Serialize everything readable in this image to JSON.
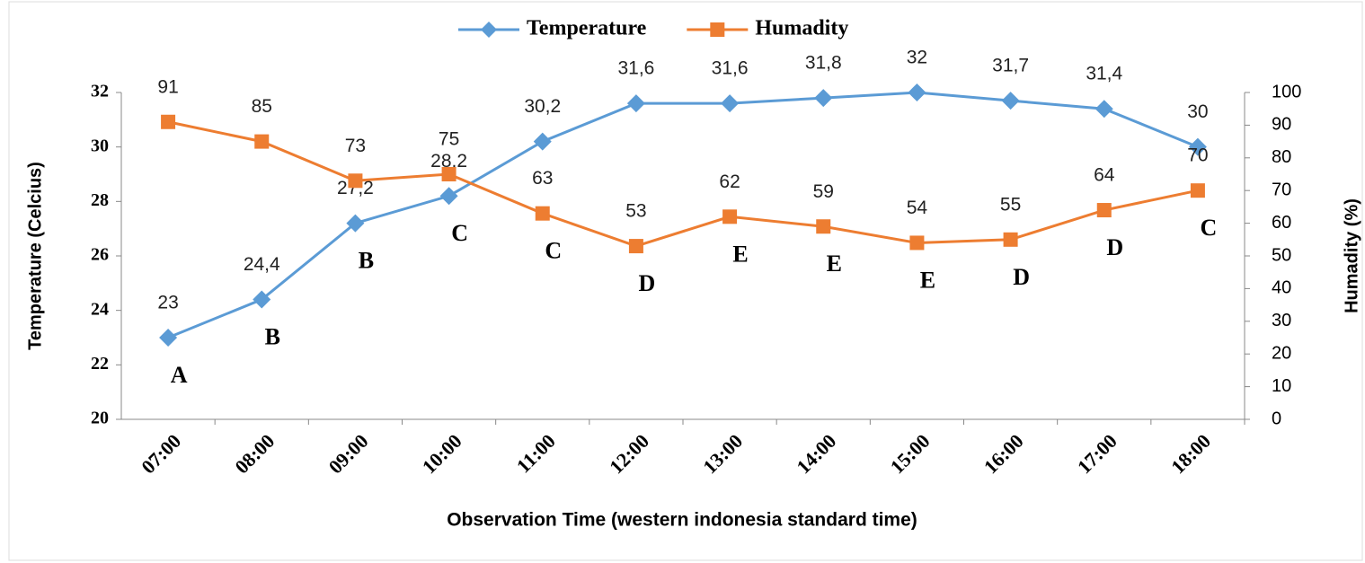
{
  "chart_data": {
    "type": "line",
    "categories": [
      "07:00",
      "08:00",
      "09:00",
      "10:00",
      "11:00",
      "12:00",
      "13:00",
      "14:00",
      "15:00",
      "16:00",
      "17:00",
      "18:00"
    ],
    "series": [
      {
        "name": "Temperature",
        "color": "#5b9bd5",
        "marker": "diamond",
        "axis": "y",
        "values": [
          23,
          24.4,
          27.2,
          28.2,
          30.2,
          31.6,
          31.6,
          31.8,
          32,
          31.7,
          31.4,
          30
        ],
        "value_labels": [
          "23",
          "24,4",
          "27,2",
          "28,2",
          "30,2",
          "31,6",
          "31,6",
          "31,8",
          "32",
          "31,7",
          "31,4",
          "30"
        ]
      },
      {
        "name": "Humadity",
        "color": "#ed7d31",
        "marker": "square",
        "axis": "y2",
        "values": [
          91,
          85,
          73,
          75,
          63,
          53,
          62,
          59,
          54,
          55,
          64,
          70
        ]
      }
    ],
    "annotations": [
      "A",
      "B",
      "B",
      "C",
      "C",
      "D",
      "E",
      "E",
      "E",
      "D",
      "D",
      "C"
    ],
    "xlabel": "Observation Time (western indonesia standard time)",
    "ylabel": "Temperature (Celcius)",
    "y2label": "Humadity (%)",
    "ylim": [
      20,
      32
    ],
    "yticks": [
      20,
      22,
      24,
      26,
      28,
      30,
      32
    ],
    "y2lim": [
      0,
      100
    ],
    "y2ticks": [
      0,
      10,
      20,
      30,
      40,
      50,
      60,
      70,
      80,
      90,
      100
    ],
    "grid": false,
    "legend": "top"
  }
}
